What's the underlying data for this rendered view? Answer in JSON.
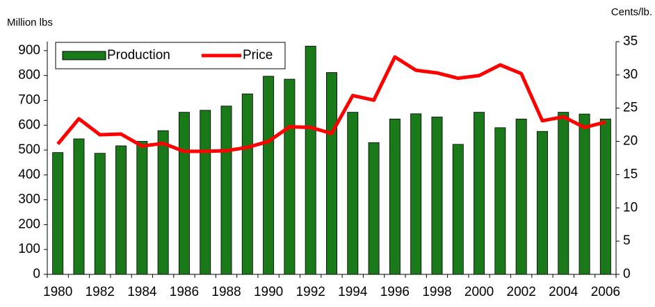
{
  "chart_data": {
    "type": "bar-line",
    "y_axis_label": "Million lbs",
    "y2_axis_label": "Cents/lb.",
    "categories": [
      "1980",
      null,
      "1982",
      null,
      "1984",
      null,
      "1986",
      null,
      "1988",
      null,
      "1990",
      null,
      "1992",
      null,
      "1994",
      null,
      "1996",
      null,
      "1998",
      null,
      "2000",
      null,
      "2002",
      null,
      "2004",
      null,
      "2006"
    ],
    "series": [
      {
        "name": "Production",
        "type": "bar",
        "color": "#1a7a1a",
        "values": [
          490,
          545,
          487,
          517,
          535,
          578,
          652,
          660,
          677,
          726,
          797,
          785,
          918,
          812,
          652,
          530,
          625,
          646,
          633,
          523,
          652,
          590,
          625,
          575,
          652,
          645,
          625
        ]
      },
      {
        "name": "Price",
        "type": "line",
        "axis": "y2",
        "color": "#ff0000",
        "values": [
          19.6,
          23.4,
          21.0,
          21.1,
          19.3,
          19.7,
          18.5,
          18.5,
          18.6,
          19.1,
          20.0,
          22.2,
          22.1,
          21.2,
          26.9,
          26.2,
          32.7,
          30.7,
          30.3,
          29.5,
          29.9,
          31.5,
          30.2,
          23.1,
          23.7,
          22.1,
          22.9
        ]
      }
    ],
    "ylim": [
      0,
      936
    ],
    "yticks": [
      0,
      100,
      200,
      300,
      400,
      500,
      600,
      700,
      800,
      900
    ],
    "y2lim": [
      0,
      35
    ],
    "y2ticks": [
      0,
      5,
      10,
      15,
      20,
      25,
      30,
      35
    ],
    "grid": false
  }
}
